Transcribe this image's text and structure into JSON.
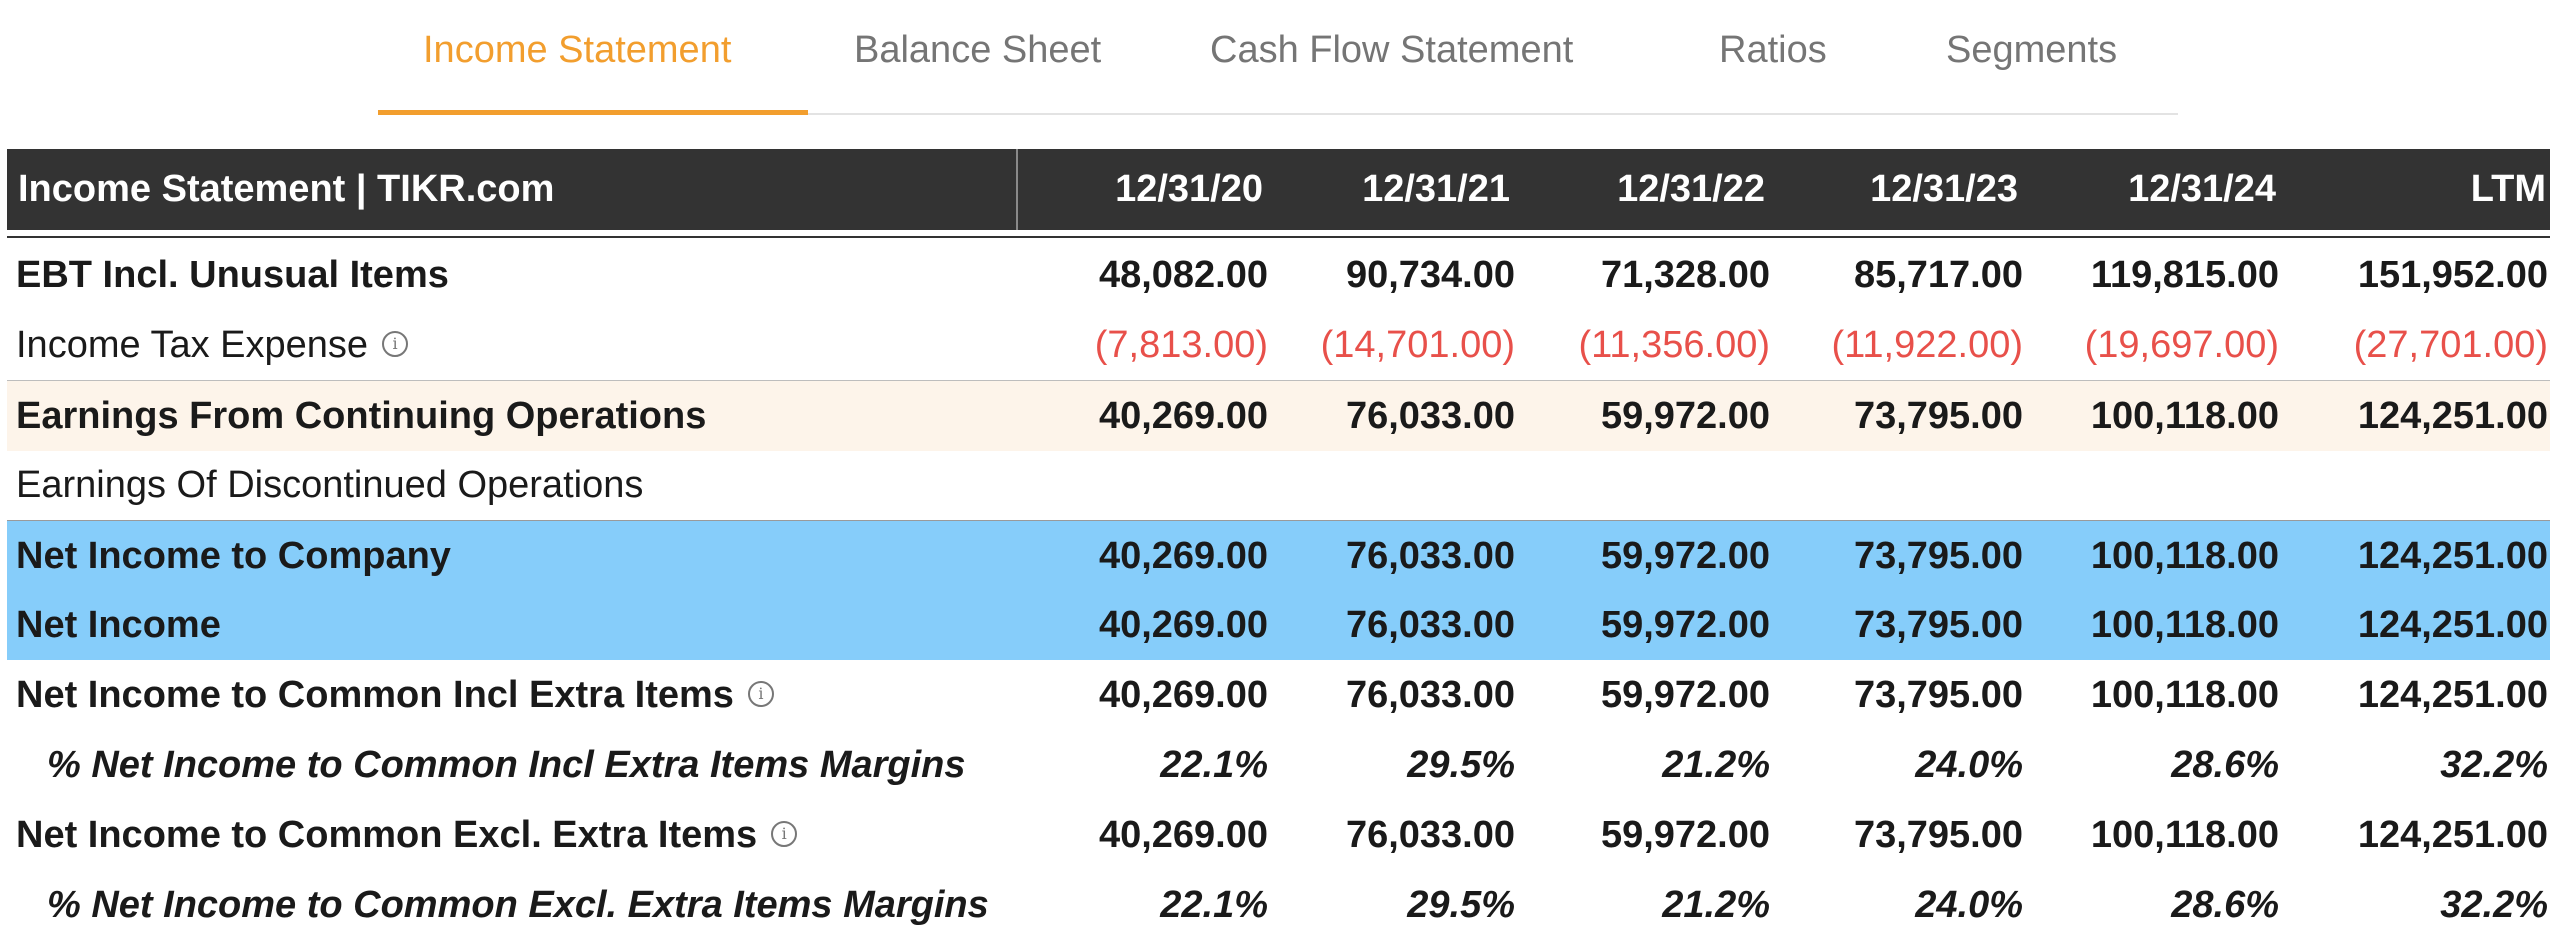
{
  "tabs": [
    {
      "label": "Income Statement",
      "active": true
    },
    {
      "label": "Balance Sheet",
      "active": false
    },
    {
      "label": "Cash Flow Statement",
      "active": false
    },
    {
      "label": "Ratios",
      "active": false
    },
    {
      "label": "Segments",
      "active": false
    }
  ],
  "colors": {
    "accent": "#f29e2e",
    "header_bg": "#333333",
    "highlight_blue": "#86cdfa",
    "highlight_orange": "#fdf4ea",
    "negative": "#e8504a"
  },
  "table": {
    "title": "Income Statement | TIKR.com",
    "columns": [
      "12/31/20",
      "12/31/21",
      "12/31/22",
      "12/31/23",
      "12/31/24",
      "LTM"
    ],
    "rows": [
      {
        "label": "EBT Incl. Unusual Items",
        "info": false,
        "values": [
          "48,082.00",
          "90,734.00",
          "71,328.00",
          "85,717.00",
          "119,815.00",
          "151,952.00"
        ]
      },
      {
        "label": "Income Tax Expense",
        "info": true,
        "values": [
          "(7,813.00)",
          "(14,701.00)",
          "(11,356.00)",
          "(11,922.00)",
          "(19,697.00)",
          "(27,701.00)"
        ]
      },
      {
        "label": "Earnings From Continuing Operations",
        "info": false,
        "values": [
          "40,269.00",
          "76,033.00",
          "59,972.00",
          "73,795.00",
          "100,118.00",
          "124,251.00"
        ]
      },
      {
        "label": "Earnings Of Discontinued Operations",
        "info": false,
        "values": [
          "",
          "",
          "",
          "",
          "",
          ""
        ]
      },
      {
        "label": "Net Income to Company",
        "info": false,
        "values": [
          "40,269.00",
          "76,033.00",
          "59,972.00",
          "73,795.00",
          "100,118.00",
          "124,251.00"
        ]
      },
      {
        "label": "Net Income",
        "info": false,
        "values": [
          "40,269.00",
          "76,033.00",
          "59,972.00",
          "73,795.00",
          "100,118.00",
          "124,251.00"
        ]
      },
      {
        "label": "Net Income to Common Incl Extra Items",
        "info": true,
        "values": [
          "40,269.00",
          "76,033.00",
          "59,972.00",
          "73,795.00",
          "100,118.00",
          "124,251.00"
        ]
      },
      {
        "label": "% Net Income to Common Incl Extra Items Margins",
        "info": false,
        "values": [
          "22.1%",
          "29.5%",
          "21.2%",
          "24.0%",
          "28.6%",
          "32.2%"
        ]
      },
      {
        "label": "Net Income to Common Excl. Extra Items",
        "info": true,
        "values": [
          "40,269.00",
          "76,033.00",
          "59,972.00",
          "73,795.00",
          "100,118.00",
          "124,251.00"
        ]
      },
      {
        "label": "% Net Income to Common Excl. Extra Items Margins",
        "info": false,
        "values": [
          "22.1%",
          "29.5%",
          "21.2%",
          "24.0%",
          "28.6%",
          "32.2%"
        ]
      }
    ]
  }
}
